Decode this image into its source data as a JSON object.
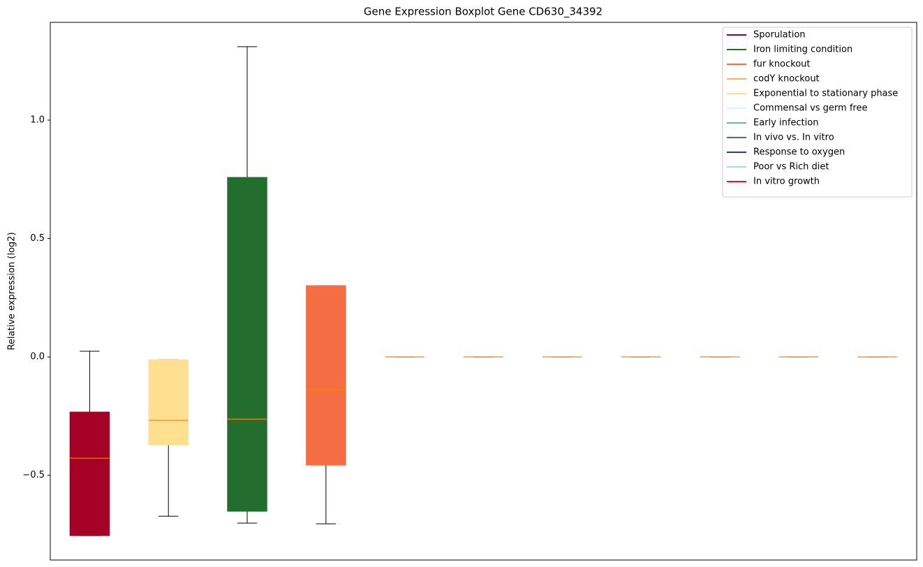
{
  "chart_data": {
    "type": "boxplot",
    "title": "Gene Expression Boxplot Gene CD630_34392",
    "y_label": "Relative expression (log2)",
    "ylim": [
      -0.858,
      1.413
    ],
    "yticks": [
      {
        "value": -0.5,
        "label": "−0.5"
      },
      {
        "value": 0,
        "label": "0.0"
      },
      0.5,
      {
        "value": 1,
        "label": "1.0"
      }
    ],
    "grid": false,
    "median_color": "#ff7f0e",
    "boxes": [
      {
        "min": -0.755,
        "q1": -0.755,
        "median": -0.428,
        "q3": -0.233,
        "max": 0.024,
        "color": "#a50026"
      },
      {
        "min": -0.673,
        "q1": -0.372,
        "median": -0.268,
        "q3": -0.012,
        "max": -0.012,
        "color": "#fee090"
      },
      {
        "min": -0.702,
        "q1": -0.652,
        "median": -0.263,
        "q3": 0.758,
        "max": 1.31,
        "color": "#236e2e"
      },
      {
        "min": -0.705,
        "q1": -0.457,
        "median": -0.139,
        "q3": 0.301,
        "max": 0.301,
        "color": "#f46d43"
      },
      {
        "min": 0,
        "q1": 0,
        "median": 0,
        "q3": 0,
        "max": 0
      },
      {
        "min": 0,
        "q1": 0,
        "median": 0,
        "q3": 0,
        "max": 0
      },
      {
        "min": 0,
        "q1": 0,
        "median": 0,
        "q3": 0,
        "max": 0
      },
      {
        "min": 0,
        "q1": 0,
        "median": 0,
        "q3": 0,
        "max": 0
      },
      {
        "min": 0,
        "q1": 0,
        "median": 0,
        "q3": 0,
        "max": 0
      },
      {
        "min": 0,
        "q1": 0,
        "median": 0,
        "q3": 0,
        "max": 0
      },
      {
        "min": 0,
        "q1": 0,
        "median": 0,
        "q3": 0,
        "max": 0
      }
    ],
    "legend_position": "upper right",
    "series": [
      {
        "name": "Sporulation",
        "color": "#a50026"
      },
      {
        "name": "Iron limiting condition",
        "color": "#236e2e"
      },
      {
        "name": "fur knockout",
        "color": "#f46d43"
      },
      {
        "name": "codY knockout",
        "color": "#fdae61"
      },
      {
        "name": "Exponential to stationary phase",
        "color": "#fee090"
      },
      {
        "name": "Commensal vs germ free",
        "color": "#e0f3f8"
      },
      {
        "name": "Early infection",
        "color": "#74add1"
      },
      {
        "name": "In vivo vs. In vitro",
        "color": "#3a6bc4"
      },
      {
        "name": "Response to oxygen",
        "color": "#313695"
      },
      {
        "name": "Poor vs Rich diet",
        "color": "#abd9e9"
      },
      {
        "name": "In vitro growth",
        "color": "#e41a1c"
      }
    ]
  }
}
